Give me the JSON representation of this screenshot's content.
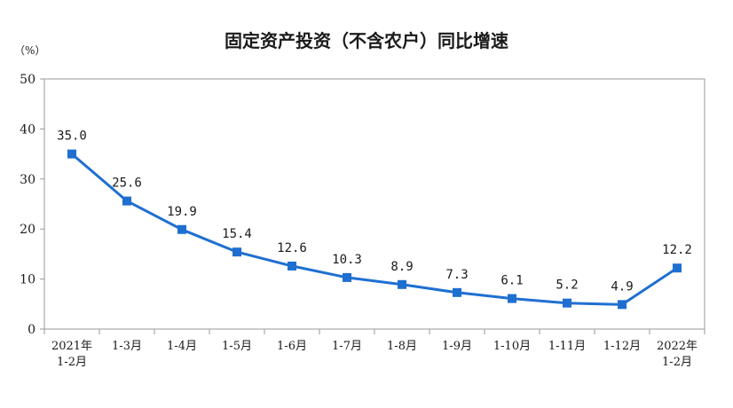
{
  "chart_data": {
    "type": "line",
    "title": "固定资产投资（不含农户）同比增速",
    "unit": "（%）",
    "ylim": [
      0,
      50
    ],
    "yticks": [
      0,
      10,
      20,
      30,
      40,
      50
    ],
    "categories": [
      [
        "2021年",
        "1-2月"
      ],
      [
        "1-3月"
      ],
      [
        "1-4月"
      ],
      [
        "1-5月"
      ],
      [
        "1-6月"
      ],
      [
        "1-7月"
      ],
      [
        "1-8月"
      ],
      [
        "1-9月"
      ],
      [
        "1-10月"
      ],
      [
        "1-11月"
      ],
      [
        "1-12月"
      ],
      [
        "2022年",
        "1-2月"
      ]
    ],
    "series": [
      {
        "values": [
          35.0,
          25.6,
          19.9,
          15.4,
          12.6,
          10.3,
          8.9,
          7.3,
          6.1,
          5.2,
          4.9,
          12.2
        ],
        "labels": [
          "35.0",
          "25.6",
          "19.9",
          "15.4",
          "12.6",
          "10.3",
          "8.9",
          "7.3",
          "6.1",
          "5.2",
          "4.9",
          "12.2"
        ]
      }
    ],
    "line_color": "#1f6fd1",
    "grid": false
  }
}
